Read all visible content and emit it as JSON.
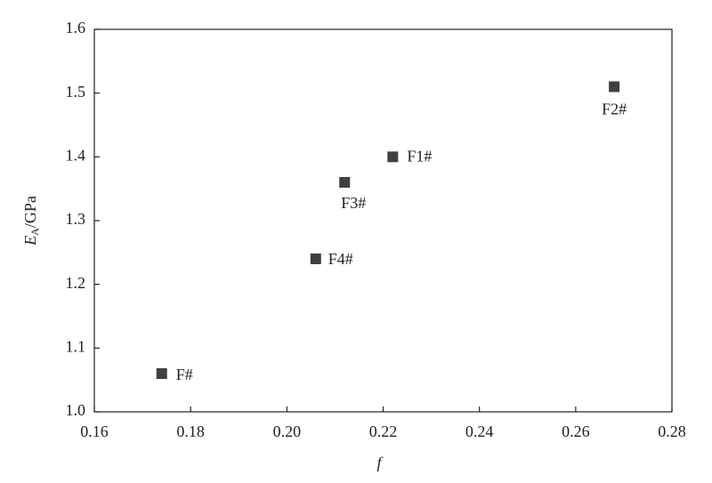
{
  "chart_data": {
    "type": "scatter",
    "x": [
      0.174,
      0.206,
      0.212,
      0.222,
      0.268
    ],
    "values": [
      1.06,
      1.24,
      1.36,
      1.4,
      1.51
    ],
    "labels": [
      "F#",
      "F4#",
      "F3#",
      "F1#",
      "F2#"
    ],
    "color": "#404040",
    "xlabel": "f",
    "ylabel": {
      "symbol": "E",
      "subscript": "A",
      "unit": "/GPa"
    },
    "xlim": [
      0.16,
      0.28
    ],
    "xticks": [
      0.16,
      0.18,
      {
        "value": 0.2,
        "label": "0.20"
      },
      0.22,
      0.24,
      0.26,
      0.28
    ],
    "ylim": [
      1.0,
      1.6
    ],
    "yticks": [
      {
        "value": 1.0,
        "label": "1.0"
      },
      1.1,
      1.2,
      1.3,
      1.4,
      1.5,
      1.6
    ],
    "grid": false
  }
}
